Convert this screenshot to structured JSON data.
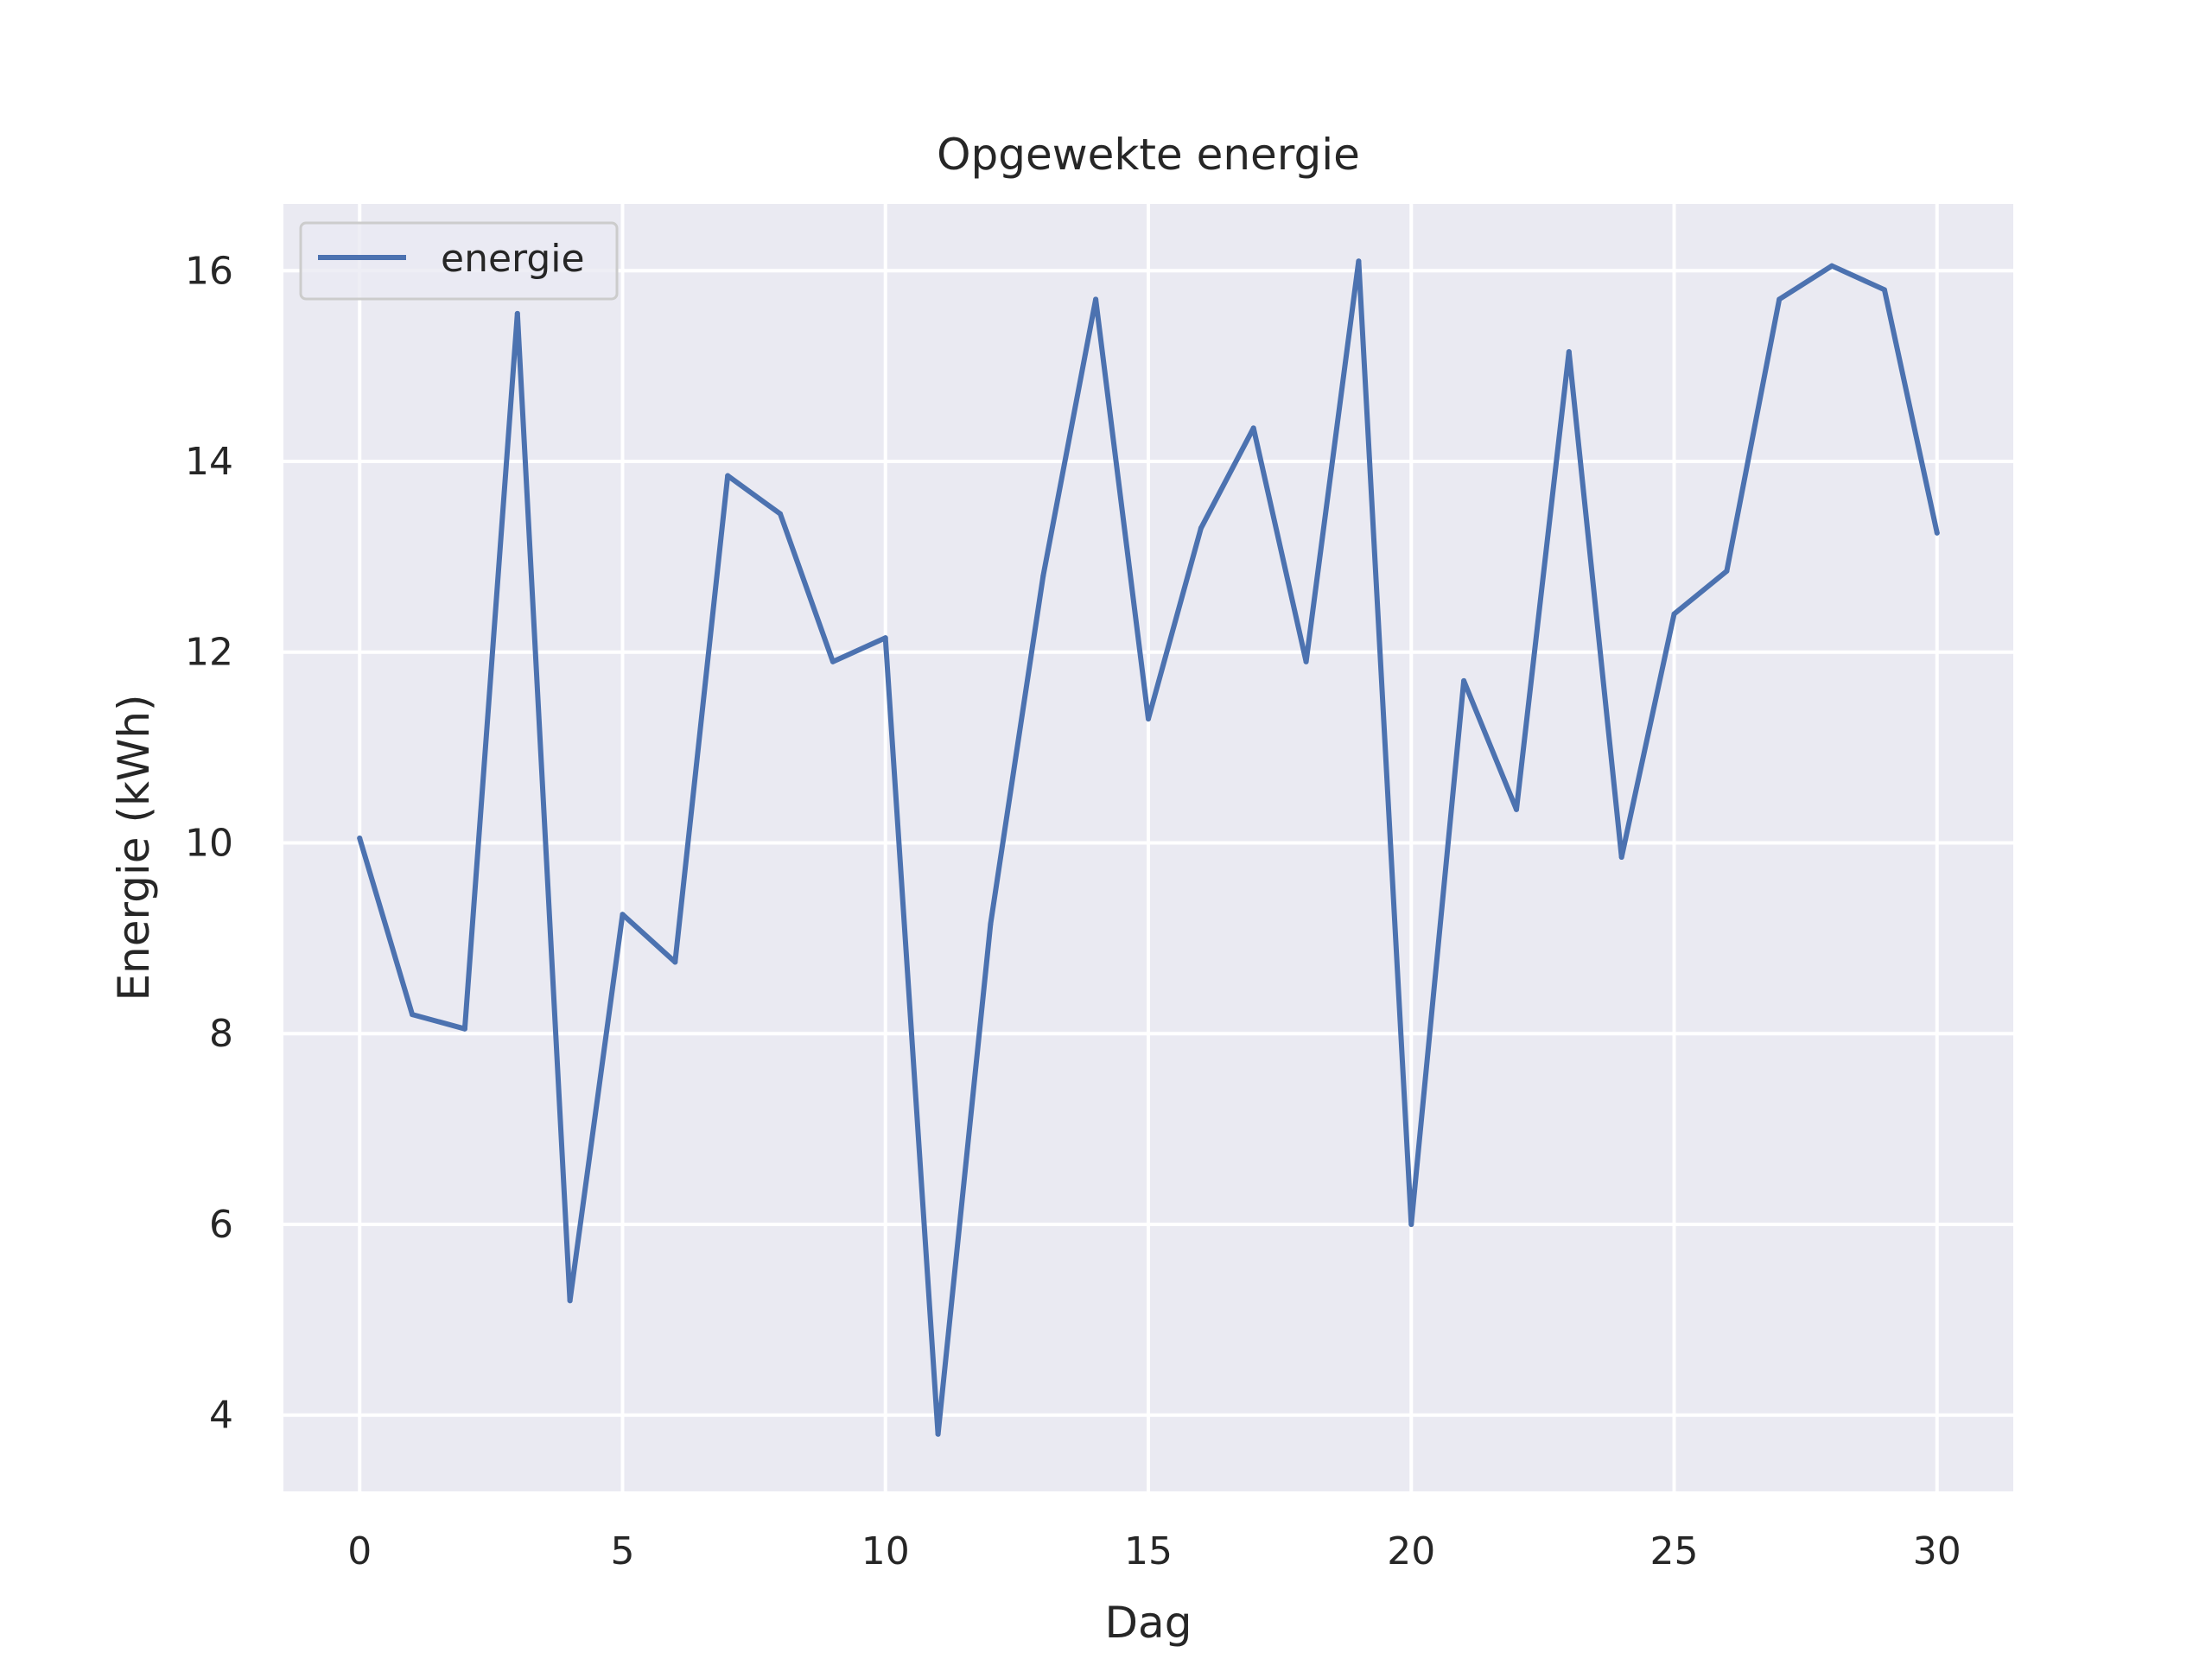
{
  "chart_data": {
    "type": "line",
    "title": "Opgewekte energie",
    "xlabel": "Dag",
    "ylabel": "Energie (kWh)",
    "xlim": [
      -1.45,
      31.45
    ],
    "ylim": [
      3.2,
      16.7
    ],
    "xticks": [
      0,
      5,
      10,
      15,
      20,
      25,
      30
    ],
    "yticks": [
      4,
      6,
      8,
      10,
      12,
      14,
      16
    ],
    "grid": true,
    "legend_position": "top-left",
    "x": [
      0,
      1,
      2,
      3,
      4,
      5,
      6,
      7,
      8,
      9,
      10,
      11,
      12,
      13,
      14,
      15,
      16,
      17,
      18,
      19,
      20,
      21,
      22,
      23,
      24,
      25,
      26,
      27,
      28,
      29,
      30
    ],
    "series": [
      {
        "name": "energie",
        "color": "#4c72b0",
        "values": [
          10.05,
          8.2,
          8.05,
          15.55,
          5.2,
          9.25,
          8.75,
          13.85,
          13.45,
          11.9,
          12.15,
          3.8,
          9.15,
          12.8,
          15.7,
          11.3,
          13.3,
          14.35,
          11.9,
          16.1,
          6.0,
          11.7,
          10.35,
          15.15,
          9.85,
          12.4,
          12.85,
          15.7,
          16.05,
          15.8,
          13.25
        ]
      }
    ]
  },
  "colors": {
    "plot_background": "#eaeaf2",
    "grid": "#ffffff",
    "text": "#262626",
    "line": "#4c72b0"
  }
}
